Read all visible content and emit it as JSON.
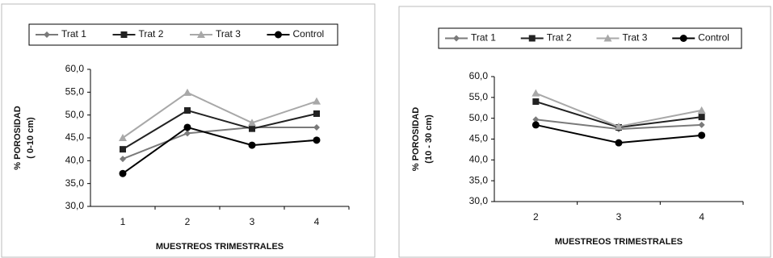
{
  "chart_data": [
    {
      "type": "line",
      "ylabel": [
        "% POROSIDAD",
        "( 0-10 cm)"
      ],
      "xlabel": "MUESTREOS TRIMESTRALES",
      "categories": [
        "1",
        "2",
        "3",
        "4"
      ],
      "ylim": [
        30,
        60
      ],
      "yticks": [
        {
          "value": 30,
          "label": "30,0"
        },
        {
          "value": 35,
          "label": "35,0"
        },
        {
          "value": 40,
          "label": "40,0"
        },
        {
          "value": 45,
          "label": "45,0"
        },
        {
          "value": 50,
          "label": "50,0"
        },
        {
          "value": 55,
          "label": "55,0"
        },
        {
          "value": 60,
          "label": "60,0"
        }
      ],
      "legend": "top",
      "series": [
        {
          "name": "Trat 1",
          "color": "#7a7a7a",
          "marker": "diamond",
          "values": [
            40.4,
            46.0,
            47.3,
            47.3
          ]
        },
        {
          "name": "Trat 2",
          "color": "#222222",
          "marker": "square",
          "values": [
            42.5,
            51.0,
            47.0,
            50.3
          ]
        },
        {
          "name": "Trat 3",
          "color": "#a8a8a8",
          "marker": "triangle",
          "values": [
            45.0,
            54.9,
            48.3,
            53.0
          ]
        },
        {
          "name": "Control",
          "color": "#000000",
          "marker": "circle",
          "values": [
            37.2,
            47.3,
            43.4,
            44.5
          ]
        }
      ]
    },
    {
      "type": "line",
      "ylabel": [
        "% POROSIDAD",
        "(10 - 30 cm)"
      ],
      "xlabel": "MUESTREOS TRIMESTRALES",
      "categories": [
        "2",
        "3",
        "4"
      ],
      "ylim": [
        30,
        60
      ],
      "yticks": [
        {
          "value": 30,
          "label": "30,0"
        },
        {
          "value": 35,
          "label": "35,0"
        },
        {
          "value": 40,
          "label": "40,0"
        },
        {
          "value": 45,
          "label": "45,0"
        },
        {
          "value": 50,
          "label": "50,0"
        },
        {
          "value": 55,
          "label": "55,0"
        },
        {
          "value": 60,
          "label": "60,0"
        }
      ],
      "legend": "top",
      "series": [
        {
          "name": "Trat 1",
          "color": "#7a7a7a",
          "marker": "diamond",
          "values": [
            49.7,
            47.4,
            48.4
          ]
        },
        {
          "name": "Trat 2",
          "color": "#222222",
          "marker": "square",
          "values": [
            54.0,
            47.8,
            50.3
          ]
        },
        {
          "name": "Trat 3",
          "color": "#a8a8a8",
          "marker": "triangle",
          "values": [
            56.0,
            48.0,
            51.9
          ]
        },
        {
          "name": "Control",
          "color": "#000000",
          "marker": "circle",
          "values": [
            48.4,
            44.1,
            45.9
          ]
        }
      ]
    }
  ]
}
